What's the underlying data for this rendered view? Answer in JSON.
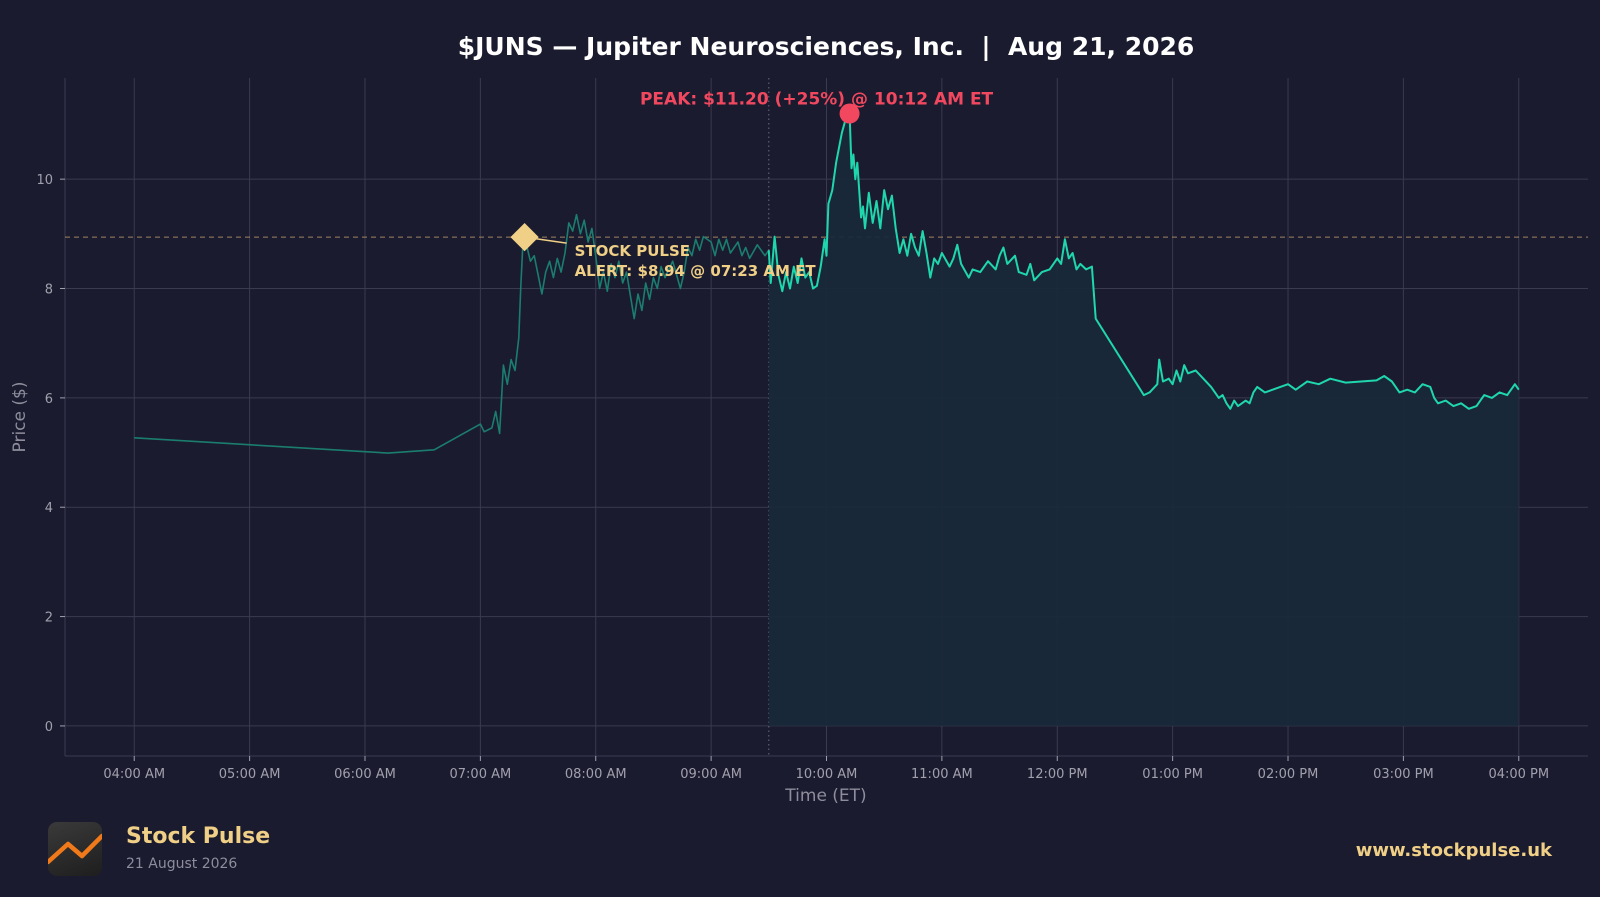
{
  "chart_data": {
    "type": "line",
    "title": "$JUNS — Jupiter Neurosciences, Inc.  |  Aug 21, 2026",
    "xlabel": "Time (ET)",
    "ylabel": "Price ($)",
    "x_ticks": [
      "04:00 AM",
      "05:00 AM",
      "06:00 AM",
      "07:00 AM",
      "08:00 AM",
      "09:00 AM",
      "10:00 AM",
      "11:00 AM",
      "12:00 PM",
      "01:00 PM",
      "02:00 PM",
      "03:00 PM",
      "04:00 PM"
    ],
    "y_ticks": [
      0,
      2,
      4,
      6,
      8,
      10
    ],
    "xlim": [
      "03:24 AM",
      "04:36 PM"
    ],
    "ylim": [
      -0.55,
      11.85
    ],
    "grid": true,
    "market_open": "09:30 AM",
    "reference_price": 8.94,
    "series": [
      {
        "style": "pre-market",
        "points": [
          [
            "04:00 AM",
            5.27
          ],
          [
            "06:12 AM",
            4.99
          ],
          [
            "06:36 AM",
            5.05
          ],
          [
            "07:00 AM",
            5.52
          ],
          [
            "07:02 AM",
            5.38
          ],
          [
            "07:06 AM",
            5.45
          ],
          [
            "07:08 AM",
            5.75
          ],
          [
            "07:10 AM",
            5.35
          ],
          [
            "07:12 AM",
            6.6
          ],
          [
            "07:14 AM",
            6.25
          ],
          [
            "07:16 AM",
            6.7
          ],
          [
            "07:18 AM",
            6.5
          ],
          [
            "07:20 AM",
            7.1
          ],
          [
            "07:21 AM",
            8.0
          ],
          [
            "07:22 AM",
            8.75
          ],
          [
            "07:23 AM",
            8.94
          ],
          [
            "07:26 AM",
            8.5
          ],
          [
            "07:28 AM",
            8.6
          ],
          [
            "07:30 AM",
            8.25
          ],
          [
            "07:32 AM",
            7.9
          ],
          [
            "07:34 AM",
            8.3
          ],
          [
            "07:36 AM",
            8.5
          ],
          [
            "07:38 AM",
            8.2
          ],
          [
            "07:40 AM",
            8.55
          ],
          [
            "07:42 AM",
            8.3
          ],
          [
            "07:44 AM",
            8.65
          ],
          [
            "07:46 AM",
            9.2
          ],
          [
            "07:48 AM",
            9.05
          ],
          [
            "07:50 AM",
            9.35
          ],
          [
            "07:52 AM",
            9.0
          ],
          [
            "07:54 AM",
            9.25
          ],
          [
            "07:56 AM",
            8.85
          ],
          [
            "07:58 AM",
            9.1
          ],
          [
            "08:00 AM",
            8.6
          ],
          [
            "08:02 AM",
            8.0
          ],
          [
            "08:04 AM",
            8.3
          ],
          [
            "08:06 AM",
            7.95
          ],
          [
            "08:08 AM",
            8.45
          ],
          [
            "08:10 AM",
            8.2
          ],
          [
            "08:12 AM",
            8.5
          ],
          [
            "08:14 AM",
            8.1
          ],
          [
            "08:16 AM",
            8.3
          ],
          [
            "08:20 AM",
            7.45
          ],
          [
            "08:22 AM",
            7.9
          ],
          [
            "08:24 AM",
            7.6
          ],
          [
            "08:26 AM",
            8.1
          ],
          [
            "08:28 AM",
            7.8
          ],
          [
            "08:30 AM",
            8.2
          ],
          [
            "08:32 AM",
            8.0
          ],
          [
            "08:34 AM",
            8.4
          ],
          [
            "08:36 AM",
            8.2
          ],
          [
            "08:40 AM",
            8.5
          ],
          [
            "08:44 AM",
            8.0
          ],
          [
            "08:46 AM",
            8.3
          ],
          [
            "08:48 AM",
            8.75
          ],
          [
            "08:50 AM",
            8.6
          ],
          [
            "08:52 AM",
            8.9
          ],
          [
            "08:54 AM",
            8.7
          ],
          [
            "08:56 AM",
            8.95
          ],
          [
            "09:00 AM",
            8.85
          ],
          [
            "09:02 AM",
            8.6
          ],
          [
            "09:04 AM",
            8.9
          ],
          [
            "09:06 AM",
            8.7
          ],
          [
            "09:08 AM",
            8.9
          ],
          [
            "09:10 AM",
            8.65
          ],
          [
            "09:14 AM",
            8.85
          ],
          [
            "09:16 AM",
            8.6
          ],
          [
            "09:18 AM",
            8.75
          ],
          [
            "09:20 AM",
            8.55
          ],
          [
            "09:24 AM",
            8.8
          ],
          [
            "09:28 AM",
            8.6
          ],
          [
            "09:30 AM",
            8.7
          ]
        ]
      },
      {
        "style": "regular",
        "points": [
          [
            "09:30 AM",
            8.7
          ],
          [
            "09:31 AM",
            8.1
          ],
          [
            "09:33 AM",
            8.95
          ],
          [
            "09:35 AM",
            8.25
          ],
          [
            "09:37 AM",
            7.95
          ],
          [
            "09:39 AM",
            8.3
          ],
          [
            "09:41 AM",
            8.0
          ],
          [
            "09:43 AM",
            8.4
          ],
          [
            "09:45 AM",
            8.1
          ],
          [
            "09:47 AM",
            8.55
          ],
          [
            "09:49 AM",
            8.2
          ],
          [
            "09:51 AM",
            8.3
          ],
          [
            "09:53 AM",
            8.0
          ],
          [
            "09:55 AM",
            8.05
          ],
          [
            "09:57 AM",
            8.4
          ],
          [
            "09:59 AM",
            8.9
          ],
          [
            "10:00 AM",
            8.6
          ],
          [
            "10:01 AM",
            9.55
          ],
          [
            "10:03 AM",
            9.8
          ],
          [
            "10:05 AM",
            10.3
          ],
          [
            "10:08 AM",
            10.85
          ],
          [
            "10:10 AM",
            11.1
          ],
          [
            "10:12 AM",
            11.2
          ],
          [
            "10:13 AM",
            10.2
          ],
          [
            "10:14 AM",
            10.45
          ],
          [
            "10:15 AM",
            10.0
          ],
          [
            "10:16 AM",
            10.3
          ],
          [
            "10:18 AM",
            9.3
          ],
          [
            "10:19 AM",
            9.5
          ],
          [
            "10:20 AM",
            9.1
          ],
          [
            "10:22 AM",
            9.75
          ],
          [
            "10:24 AM",
            9.2
          ],
          [
            "10:26 AM",
            9.6
          ],
          [
            "10:28 AM",
            9.1
          ],
          [
            "10:30 AM",
            9.8
          ],
          [
            "10:32 AM",
            9.45
          ],
          [
            "10:34 AM",
            9.7
          ],
          [
            "10:36 AM",
            9.1
          ],
          [
            "10:38 AM",
            8.65
          ],
          [
            "10:40 AM",
            8.9
          ],
          [
            "10:42 AM",
            8.6
          ],
          [
            "10:44 AM",
            9.0
          ],
          [
            "10:46 AM",
            8.75
          ],
          [
            "10:48 AM",
            8.6
          ],
          [
            "10:50 AM",
            9.05
          ],
          [
            "10:52 AM",
            8.65
          ],
          [
            "10:54 AM",
            8.2
          ],
          [
            "10:56 AM",
            8.55
          ],
          [
            "10:58 AM",
            8.45
          ],
          [
            "11:00 AM",
            8.65
          ],
          [
            "11:04 AM",
            8.4
          ],
          [
            "11:06 AM",
            8.55
          ],
          [
            "11:08 AM",
            8.8
          ],
          [
            "11:10 AM",
            8.45
          ],
          [
            "11:14 AM",
            8.2
          ],
          [
            "11:16 AM",
            8.35
          ],
          [
            "11:20 AM",
            8.3
          ],
          [
            "11:24 AM",
            8.5
          ],
          [
            "11:28 AM",
            8.35
          ],
          [
            "11:30 AM",
            8.6
          ],
          [
            "11:32 AM",
            8.75
          ],
          [
            "11:34 AM",
            8.45
          ],
          [
            "11:38 AM",
            8.6
          ],
          [
            "11:40 AM",
            8.3
          ],
          [
            "11:44 AM",
            8.25
          ],
          [
            "11:46 AM",
            8.45
          ],
          [
            "11:48 AM",
            8.15
          ],
          [
            "11:52 AM",
            8.3
          ],
          [
            "11:56 AM",
            8.35
          ],
          [
            "12:00 PM",
            8.55
          ],
          [
            "12:02 PM",
            8.45
          ],
          [
            "12:04 PM",
            8.9
          ],
          [
            "12:06 PM",
            8.55
          ],
          [
            "12:08 PM",
            8.65
          ],
          [
            "12:10 PM",
            8.35
          ],
          [
            "12:12 PM",
            8.45
          ],
          [
            "12:15 PM",
            8.35
          ],
          [
            "12:18 PM",
            8.4
          ],
          [
            "12:20 PM",
            7.45
          ],
          [
            "12:45 PM",
            6.05
          ],
          [
            "12:48 PM",
            6.1
          ],
          [
            "12:52 PM",
            6.25
          ],
          [
            "12:53 PM",
            6.7
          ],
          [
            "12:55 PM",
            6.3
          ],
          [
            "12:58 PM",
            6.35
          ],
          [
            "01:00 PM",
            6.25
          ],
          [
            "01:02 PM",
            6.5
          ],
          [
            "01:04 PM",
            6.3
          ],
          [
            "01:06 PM",
            6.6
          ],
          [
            "01:08 PM",
            6.45
          ],
          [
            "01:12 PM",
            6.5
          ],
          [
            "01:16 PM",
            6.35
          ],
          [
            "01:20 PM",
            6.2
          ],
          [
            "01:24 PM",
            6.0
          ],
          [
            "01:26 PM",
            6.05
          ],
          [
            "01:28 PM",
            5.9
          ],
          [
            "01:30 PM",
            5.8
          ],
          [
            "01:32 PM",
            5.95
          ],
          [
            "01:34 PM",
            5.85
          ],
          [
            "01:38 PM",
            5.95
          ],
          [
            "01:40 PM",
            5.9
          ],
          [
            "01:42 PM",
            6.1
          ],
          [
            "01:44 PM",
            6.2
          ],
          [
            "01:48 PM",
            6.1
          ],
          [
            "01:52 PM",
            6.15
          ],
          [
            "02:00 PM",
            6.25
          ],
          [
            "02:04 PM",
            6.15
          ],
          [
            "02:10 PM",
            6.3
          ],
          [
            "02:16 PM",
            6.25
          ],
          [
            "02:22 PM",
            6.35
          ],
          [
            "02:30 PM",
            6.28
          ],
          [
            "02:38 PM",
            6.3
          ],
          [
            "02:46 PM",
            6.32
          ],
          [
            "02:50 PM",
            6.4
          ],
          [
            "02:54 PM",
            6.3
          ],
          [
            "02:58 PM",
            6.1
          ],
          [
            "03:02 PM",
            6.15
          ],
          [
            "03:06 PM",
            6.1
          ],
          [
            "03:10 PM",
            6.25
          ],
          [
            "03:14 PM",
            6.2
          ],
          [
            "03:16 PM",
            6.0
          ],
          [
            "03:18 PM",
            5.9
          ],
          [
            "03:22 PM",
            5.95
          ],
          [
            "03:26 PM",
            5.85
          ],
          [
            "03:30 PM",
            5.9
          ],
          [
            "03:34 PM",
            5.8
          ],
          [
            "03:38 PM",
            5.85
          ],
          [
            "03:42 PM",
            6.05
          ],
          [
            "03:46 PM",
            6.0
          ],
          [
            "03:50 PM",
            6.1
          ],
          [
            "03:54 PM",
            6.05
          ],
          [
            "03:58 PM",
            6.25
          ],
          [
            "04:00 PM",
            6.15
          ]
        ]
      }
    ],
    "annotations": {
      "alert": {
        "time": "07:23 AM",
        "price": 8.94,
        "line1": "STOCK PULSE",
        "line2": "ALERT: $8.94 @ 07:23 AM ET"
      },
      "peak": {
        "time": "10:12 AM",
        "price": 11.2,
        "label": "PEAK: $11.20 (+25%) @ 10:12 AM ET"
      }
    },
    "colors": {
      "background": "#1b1b2f",
      "line": "#1fd7ad",
      "premarket_line": "#1a7d6e",
      "fill": "#19293a",
      "grid": "#3a3a50",
      "reference_line": "#b8966a",
      "alert": "#f0cf86",
      "peak": "#f2485f",
      "text": "#ffffff",
      "tick_text": "#a0a0ad",
      "axis_label": "#8d8d9c"
    }
  },
  "footer": {
    "brand_name": "Stock Pulse",
    "brand_date": "21 August 2026",
    "url": "www.stockpulse.uk",
    "logo_icon": "trend-line-icon"
  }
}
